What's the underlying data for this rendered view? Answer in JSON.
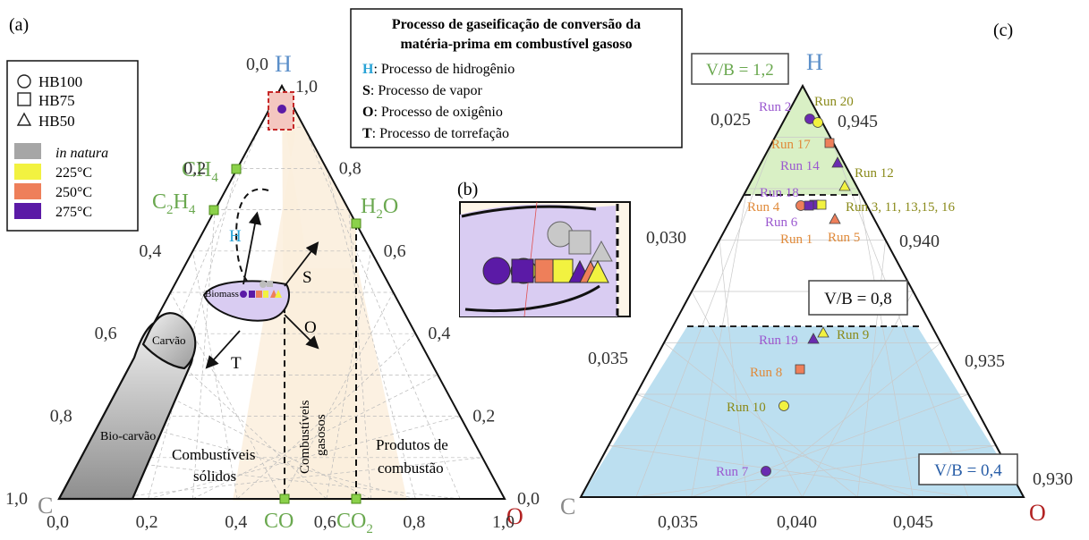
{
  "panel_labels": {
    "a": "(a)",
    "b": "(b)",
    "c": "(c)"
  },
  "legend": {
    "shapes": [
      {
        "label": "HB100",
        "icon": "circle-icon"
      },
      {
        "label": "HB75",
        "icon": "square-icon"
      },
      {
        "label": "HB50",
        "icon": "triangle-icon"
      }
    ],
    "colors": [
      {
        "label": "in natura",
        "color": "#a6a6a6"
      },
      {
        "label": "225°C",
        "color": "#f2f240"
      },
      {
        "label": "250°C",
        "color": "#ee7f5a"
      },
      {
        "label": "275°C",
        "color": "#5b1aa6"
      }
    ]
  },
  "title_box": {
    "title_line1": "Processo de gaseificação de conversão da",
    "title_line2": "matéria-prima em combustível gasoso",
    "items": [
      {
        "key": "H",
        "text": ": Processo de hidrogênio",
        "key_color": "#29a3d6"
      },
      {
        "key": "S",
        "text": ": Processo de vapor",
        "key_color": "#111111"
      },
      {
        "key": "O",
        "text": ": Processo de oxigênio",
        "key_color": "#111111"
      },
      {
        "key": "T",
        "text": ": Processo de torrefação",
        "key_color": "#111111"
      }
    ]
  },
  "panel_a": {
    "vertices": {
      "top": "H",
      "left": "C",
      "right": "O"
    },
    "vertex_colors": {
      "H": "#5b8fc9",
      "C": "#8a8a8a",
      "O": "#b22222"
    },
    "top_zero": "0,0",
    "top_one": "1,0",
    "left_ticks": [
      "0,2",
      "0,4",
      "0,6",
      "0,8",
      "1,0"
    ],
    "right_ticks": [
      "0,8",
      "0,6",
      "0,4",
      "0,2",
      "0,0"
    ],
    "bottom_ticks": [
      "0,0",
      "0,2",
      "0,4",
      "0,6",
      "0,8",
      "1,0"
    ],
    "species": {
      "CH4": {
        "base": "CH",
        "sub": "4"
      },
      "C2H4": {
        "a": "C",
        "b": "2",
        "c": "H",
        "d": "4"
      },
      "H2O": {
        "base": "H",
        "sub": "2",
        "tail": "O"
      },
      "CO": "CO",
      "CO2": {
        "base": "CO",
        "sub": "2"
      }
    },
    "species_color": "#6aa84f",
    "regions": {
      "carvao": "Carvão",
      "biocarvao": "Bio-carvão",
      "biomass": "Biomass",
      "solid_line1": "Combustíveis",
      "solid_line2": "sólidos",
      "gas_line1": "Combustíveis",
      "gas_line2": "gasosos",
      "comb_line1": "Produtos de",
      "comb_line2": "combustão"
    },
    "arrows": {
      "H": "H",
      "S": "S",
      "O": "O",
      "T": "T"
    }
  },
  "panel_c": {
    "vertices": {
      "top": "H",
      "left": "C",
      "right": "O"
    },
    "left_ticks": [
      "0,025",
      "0,030",
      "0,035"
    ],
    "right_ticks": [
      "0,945",
      "0,940",
      "0,935",
      "0,930"
    ],
    "bottom_ticks": [
      "0,035",
      "0,040",
      "0,045"
    ],
    "zones": [
      {
        "label": "V/B = 1,2",
        "color": "#6aa84f"
      },
      {
        "label": "V/B = 0,8",
        "color": "#111111"
      },
      {
        "label": "V/B = 0,4",
        "color": "#2a5fa8"
      }
    ],
    "runs": [
      {
        "label": "Run 2",
        "color": "#9b59d0",
        "marker": "circle",
        "fill": "#6a2bb0"
      },
      {
        "label": "Run 20",
        "color": "#8a8a1a",
        "marker": "circle",
        "fill": "#f2f240"
      },
      {
        "label": "Run 17",
        "color": "#e08a3a",
        "marker": "square",
        "fill": "#ee7f5a"
      },
      {
        "label": "Run 14",
        "color": "#9b59d0",
        "marker": "triangle",
        "fill": "#6a2bb0"
      },
      {
        "label": "Run 12",
        "color": "#8a8a1a",
        "marker": "triangle",
        "fill": "#f2f240"
      },
      {
        "label": "Run 18",
        "color": "#9b59d0",
        "marker": "square",
        "fill": "#6a2bb0"
      },
      {
        "label": "Run 4",
        "color": "#e08a3a",
        "marker": "circle",
        "fill": "#ee7f5a"
      },
      {
        "label": "Run 6",
        "color": "#9b59d0",
        "marker": "square",
        "fill": "#6a2bb0"
      },
      {
        "label": "Run 3, 11, 13,15, 16",
        "color": "#8a8a1a",
        "marker": "square",
        "fill": "#f2f240"
      },
      {
        "label": "Run 1",
        "color": "#e08a3a",
        "marker": "none",
        "fill": ""
      },
      {
        "label": "Run 5",
        "color": "#e08a3a",
        "marker": "triangle",
        "fill": "#ee7f5a"
      },
      {
        "label": "Run 19",
        "color": "#9b59d0",
        "marker": "triangle",
        "fill": "#6a2bb0"
      },
      {
        "label": "Run 9",
        "color": "#8a8a1a",
        "marker": "triangle",
        "fill": "#f2f240"
      },
      {
        "label": "Run 8",
        "color": "#e08a3a",
        "marker": "square",
        "fill": "#ee7f5a"
      },
      {
        "label": "Run 10",
        "color": "#8a8a1a",
        "marker": "circle",
        "fill": "#f2f240"
      },
      {
        "label": "Run 7",
        "color": "#9b59d0",
        "marker": "circle",
        "fill": "#6a2bb0"
      }
    ]
  }
}
